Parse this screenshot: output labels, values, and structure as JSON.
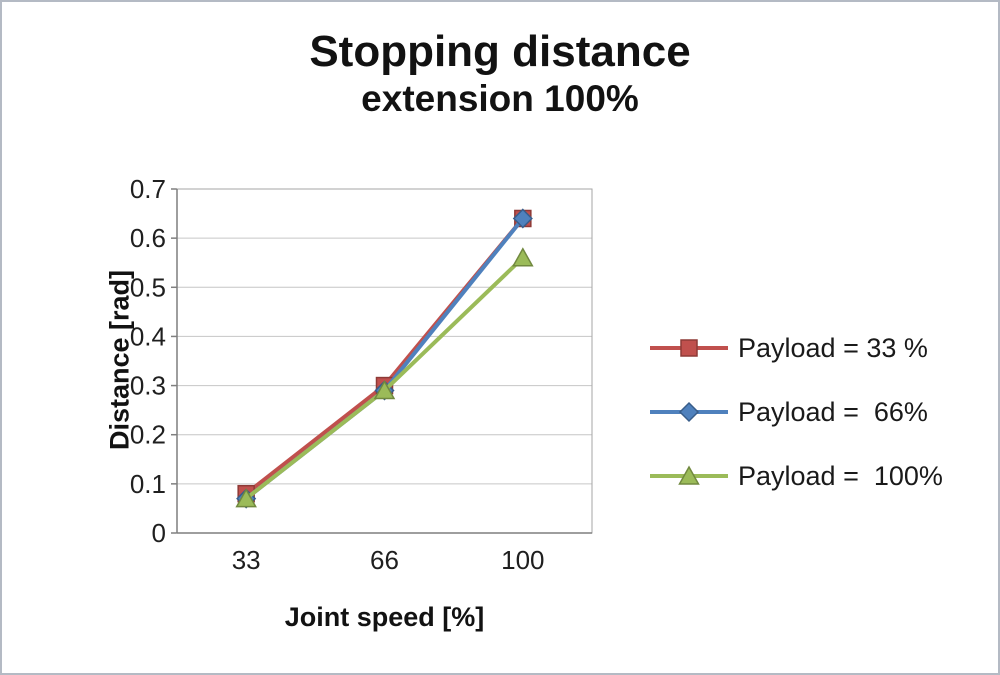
{
  "chart_data": {
    "type": "line",
    "title": "Stopping distance",
    "subtitle": "extension 100%",
    "xlabel": "Joint speed [%]",
    "ylabel": "Distance [rad]",
    "x_axis_type": "category",
    "categories": [
      "33",
      "66",
      "100"
    ],
    "ylim": [
      0,
      0.7
    ],
    "yticks": [
      0,
      0.1,
      0.2,
      0.3,
      0.4,
      0.5,
      0.6,
      0.7
    ],
    "grid": "horizontal",
    "legend_position": "right",
    "series": [
      {
        "name": "Payload = 33 %",
        "marker": "square",
        "color": "#c0504d",
        "edge": "#8e3a37",
        "values": [
          0.08,
          0.3,
          0.64
        ]
      },
      {
        "name": "Payload =  66%",
        "marker": "diamond",
        "color": "#4f81bd",
        "edge": "#385d8a",
        "values": [
          0.07,
          0.29,
          0.64
        ]
      },
      {
        "name": "Payload =  100%",
        "marker": "triangle",
        "color": "#9bbb59",
        "edge": "#71893f",
        "values": [
          0.07,
          0.29,
          0.56
        ]
      }
    ],
    "colors": {
      "gridline": "#c6c6c6",
      "axis": "#7f7f7f",
      "plot_border": "#a6a6a6",
      "text": "#1f1f1f"
    }
  }
}
